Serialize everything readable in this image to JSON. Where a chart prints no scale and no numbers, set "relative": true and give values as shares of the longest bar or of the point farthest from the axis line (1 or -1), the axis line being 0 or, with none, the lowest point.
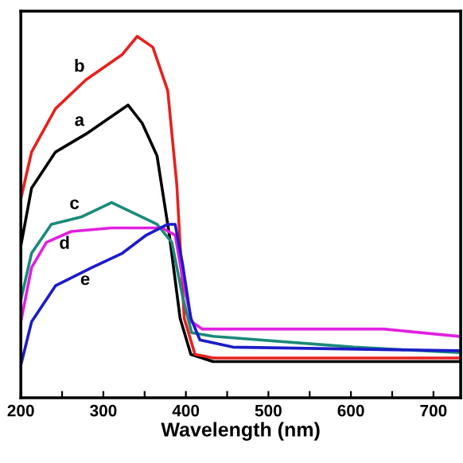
{
  "chart_data": {
    "type": "line",
    "relative": true,
    "xlabel": "Wavelength (nm)",
    "xlim": [
      200,
      733
    ],
    "xticks": [
      200,
      {
        "value": 250,
        "label": null
      },
      300,
      {
        "value": 350,
        "label": null
      },
      400,
      {
        "value": 450,
        "label": null
      },
      500,
      {
        "value": 550,
        "label": null
      },
      600,
      {
        "value": 650,
        "label": null
      },
      700
    ],
    "grid": false,
    "legend": false,
    "marker": "none",
    "line_style": "solid",
    "series": [
      {
        "name": "a",
        "color": "#000000",
        "x": [
          200,
          213,
          242,
          279,
          330,
          347,
          365,
          380,
          393,
          406,
          433,
          730
        ],
        "values": [
          0.42,
          0.58,
          0.68,
          0.73,
          0.81,
          0.76,
          0.67,
          0.45,
          0.22,
          0.12,
          0.1,
          0.1
        ]
      },
      {
        "name": "b",
        "color": "#e8201e",
        "x": [
          200,
          213,
          242,
          279,
          323,
          341,
          360,
          378,
          389,
          398,
          411,
          433,
          730
        ],
        "values": [
          0.55,
          0.68,
          0.8,
          0.88,
          0.95,
          1.0,
          0.97,
          0.85,
          0.59,
          0.22,
          0.12,
          0.11,
          0.11
        ]
      },
      {
        "name": "c",
        "color": "#1a8a7a",
        "x": [
          200,
          213,
          237,
          273,
          310,
          347,
          365,
          383,
          396,
          407,
          433,
          604,
          730
        ],
        "values": [
          0.27,
          0.4,
          0.48,
          0.5,
          0.54,
          0.5,
          0.48,
          0.43,
          0.28,
          0.18,
          0.17,
          0.14,
          0.125
        ]
      },
      {
        "name": "d",
        "color": "#e020e0",
        "x": [
          200,
          213,
          231,
          261,
          310,
          371,
          387,
          396,
          407,
          420,
          457,
          640,
          730
        ],
        "values": [
          0.21,
          0.36,
          0.43,
          0.46,
          0.47,
          0.47,
          0.45,
          0.33,
          0.21,
          0.19,
          0.19,
          0.19,
          0.17
        ]
      },
      {
        "name": "e",
        "color": "#1c1cc8",
        "x": [
          200,
          213,
          242,
          286,
          323,
          352,
          378,
          387,
          396,
          406,
          417,
          457,
          730
        ],
        "values": [
          0.09,
          0.21,
          0.31,
          0.36,
          0.4,
          0.45,
          0.48,
          0.48,
          0.37,
          0.22,
          0.16,
          0.14,
          0.13
        ]
      }
    ]
  }
}
